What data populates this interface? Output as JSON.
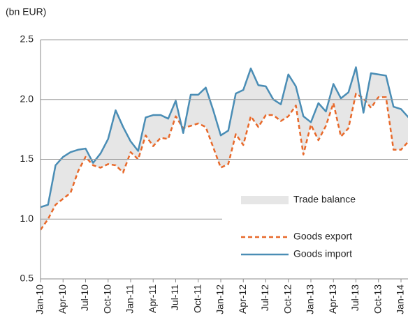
{
  "chart_data": {
    "type": "line",
    "unit_label": "(bn EUR)",
    "area_label": "Trade balance",
    "area_color": "#e6e6e6",
    "categories": [
      "Jan-10",
      null,
      null,
      "Apr-10",
      null,
      null,
      "Jul-10",
      null,
      null,
      "Oct-10",
      null,
      null,
      "Jan-11",
      null,
      null,
      "Apr-11",
      null,
      null,
      "Jul-11",
      null,
      null,
      "Oct-11",
      null,
      null,
      "Jan-12",
      null,
      null,
      "Apr-12",
      null,
      null,
      "Jul-12",
      null,
      null,
      "Oct-12",
      null,
      null,
      "Jan-13",
      null,
      null,
      "Apr-13",
      null,
      null,
      "Jul-13",
      null,
      null,
      "Oct-13",
      null,
      null,
      "Jan-14",
      null
    ],
    "series": [
      {
        "name": "Goods export",
        "color": "#e8692a",
        "dash": true,
        "values": [
          0.91,
          1.0,
          1.12,
          1.17,
          1.22,
          1.4,
          1.52,
          1.45,
          1.43,
          1.46,
          1.45,
          1.39,
          1.56,
          1.5,
          1.7,
          1.61,
          1.68,
          1.67,
          1.86,
          1.76,
          1.78,
          1.8,
          1.77,
          1.6,
          1.43,
          1.46,
          1.71,
          1.62,
          1.86,
          1.77,
          1.87,
          1.87,
          1.82,
          1.86,
          1.95,
          1.54,
          1.79,
          1.66,
          1.78,
          1.97,
          1.69,
          1.76,
          2.05,
          2.01,
          1.93,
          2.02,
          2.02,
          1.58,
          1.58,
          1.65
        ]
      },
      {
        "name": "Goods import",
        "color": "#4a8db5",
        "dash": false,
        "values": [
          1.1,
          1.12,
          1.45,
          1.52,
          1.56,
          1.58,
          1.59,
          1.47,
          1.55,
          1.67,
          1.91,
          1.77,
          1.65,
          1.57,
          1.85,
          1.87,
          1.87,
          1.84,
          1.99,
          1.72,
          2.04,
          2.04,
          2.1,
          1.91,
          1.7,
          1.74,
          2.05,
          2.08,
          2.26,
          2.12,
          2.11,
          2.0,
          1.96,
          2.21,
          2.11,
          1.86,
          1.81,
          1.97,
          1.9,
          2.13,
          2.01,
          2.06,
          2.27,
          1.89,
          2.22,
          2.21,
          2.2,
          1.94,
          1.92,
          1.85
        ]
      }
    ],
    "ylim": [
      0.5,
      2.5
    ],
    "yticks": [
      {
        "value": 0.5,
        "label": "0.5"
      },
      {
        "value": 1.0,
        "label": "1.0"
      },
      {
        "value": 1.5,
        "label": "1.5"
      },
      {
        "value": 2.0,
        "label": "2.0"
      },
      {
        "value": 2.5,
        "label": "2.5"
      }
    ],
    "grid": true
  }
}
